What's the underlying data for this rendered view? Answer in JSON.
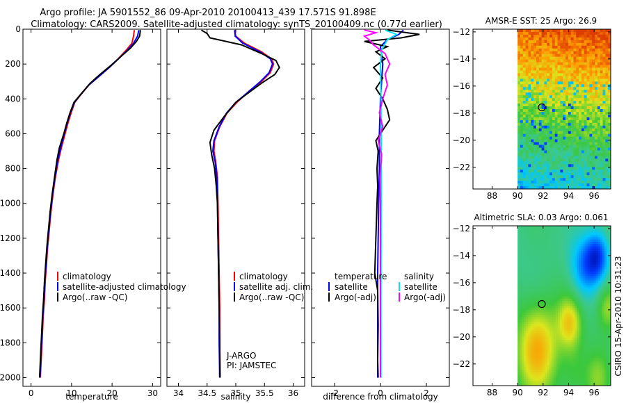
{
  "header": {
    "line1": "Argo profile: JA 5901552_86 09-Apr-2010 20100413_439 17.571S 91.898E",
    "line2": "Climatology: CARS2009. Satellite-adjusted climatology: synTS_20100409.nc (0.77d earlier)"
  },
  "side_stamp": "CSIRO 15-Apr-2010 10:31:23",
  "chart_data": [
    {
      "id": "temperature",
      "type": "line",
      "xlabel": "temperature",
      "xlim": [
        -2,
        32
      ],
      "xticks": [
        0,
        10,
        20,
        30
      ],
      "ylim": [
        2050,
        0
      ],
      "yticks": [
        0,
        200,
        400,
        600,
        800,
        1000,
        1200,
        1400,
        1600,
        1800,
        2000
      ],
      "legend": [
        "climatology",
        "satellite-adjusted climatology",
        "Argo(..raw -QC)"
      ],
      "annotations": [],
      "series": [
        {
          "name": "climatology",
          "color": "#ff0000",
          "points": [
            [
              25.5,
              5
            ],
            [
              25.3,
              40
            ],
            [
              24.9,
              80
            ],
            [
              23.5,
              120
            ],
            [
              21.5,
              170
            ],
            [
              19.3,
              220
            ],
            [
              16.8,
              270
            ],
            [
              14.3,
              320
            ],
            [
              12.5,
              370
            ],
            [
              10.8,
              420
            ],
            [
              9.9,
              480
            ],
            [
              9.1,
              540
            ],
            [
              8.4,
              600
            ],
            [
              7.5,
              680
            ],
            [
              6.8,
              750
            ],
            [
              6.0,
              850
            ],
            [
              5.4,
              950
            ],
            [
              4.9,
              1050
            ],
            [
              4.5,
              1150
            ],
            [
              4.1,
              1250
            ],
            [
              3.8,
              1350
            ],
            [
              3.5,
              1450
            ],
            [
              3.3,
              1550
            ],
            [
              3.0,
              1650
            ],
            [
              2.8,
              1750
            ],
            [
              2.6,
              1850
            ],
            [
              2.4,
              1950
            ],
            [
              2.3,
              2000
            ]
          ]
        },
        {
          "name": "satellite-adjusted climatology",
          "color": "#0000ff",
          "points": [
            [
              26.6,
              5
            ],
            [
              26.3,
              40
            ],
            [
              25.3,
              80
            ],
            [
              23.8,
              120
            ],
            [
              21.6,
              170
            ],
            [
              19.3,
              220
            ],
            [
              16.8,
              270
            ],
            [
              14.3,
              320
            ],
            [
              12.4,
              370
            ],
            [
              10.7,
              420
            ],
            [
              9.7,
              480
            ],
            [
              8.9,
              540
            ],
            [
              8.2,
              600
            ],
            [
              7.3,
              680
            ],
            [
              6.6,
              750
            ],
            [
              5.9,
              850
            ],
            [
              5.3,
              950
            ],
            [
              4.8,
              1050
            ],
            [
              4.4,
              1150
            ],
            [
              4.0,
              1250
            ],
            [
              3.7,
              1350
            ],
            [
              3.4,
              1450
            ],
            [
              3.2,
              1550
            ],
            [
              2.9,
              1650
            ],
            [
              2.7,
              1750
            ],
            [
              2.5,
              1850
            ],
            [
              2.3,
              1950
            ],
            [
              2.2,
              2000
            ]
          ]
        },
        {
          "name": "Argo(..raw -QC)",
          "color": "#000000",
          "points": [
            [
              27.0,
              5
            ],
            [
              26.8,
              40
            ],
            [
              26.0,
              70
            ],
            [
              24.5,
              110
            ],
            [
              22.0,
              160
            ],
            [
              19.6,
              210
            ],
            [
              17.0,
              260
            ],
            [
              14.6,
              310
            ],
            [
              12.4,
              370
            ],
            [
              10.6,
              420
            ],
            [
              9.6,
              480
            ],
            [
              8.8,
              540
            ],
            [
              8.1,
              600
            ],
            [
              7.0,
              680
            ],
            [
              6.4,
              750
            ],
            [
              5.8,
              850
            ],
            [
              5.2,
              950
            ],
            [
              4.7,
              1050
            ],
            [
              4.3,
              1150
            ],
            [
              3.9,
              1250
            ],
            [
              3.6,
              1350
            ],
            [
              3.3,
              1450
            ],
            [
              3.1,
              1550
            ],
            [
              2.8,
              1650
            ],
            [
              2.6,
              1750
            ],
            [
              2.4,
              1850
            ],
            [
              2.2,
              1950
            ],
            [
              2.1,
              2000
            ]
          ]
        }
      ]
    },
    {
      "id": "salinity",
      "type": "line",
      "xlabel": "salinity",
      "xlim": [
        33.8,
        36.2
      ],
      "xticks": [
        34,
        34.5,
        35,
        35.5,
        36
      ],
      "ylim": [
        2050,
        0
      ],
      "yticks": [
        0,
        200,
        400,
        600,
        800,
        1000,
        1200,
        1400,
        1600,
        1800,
        2000
      ],
      "legend": [
        "climatology",
        "satellite adj. clim.",
        "Argo(..raw -QC)"
      ],
      "annotations": [
        "J-ARGO",
        "PI: JAMSTEC"
      ],
      "series": [
        {
          "name": "climatology",
          "color": "#ff0000",
          "points": [
            [
              34.98,
              5
            ],
            [
              35.0,
              40
            ],
            [
              35.15,
              80
            ],
            [
              35.45,
              130
            ],
            [
              35.62,
              170
            ],
            [
              35.66,
              200
            ],
            [
              35.6,
              250
            ],
            [
              35.45,
              300
            ],
            [
              35.25,
              350
            ],
            [
              35.02,
              420
            ],
            [
              34.85,
              480
            ],
            [
              34.72,
              560
            ],
            [
              34.63,
              640
            ],
            [
              34.62,
              700
            ],
            [
              34.65,
              760
            ],
            [
              34.68,
              850
            ],
            [
              34.69,
              1000
            ],
            [
              34.7,
              1200
            ],
            [
              34.71,
              1400
            ],
            [
              34.72,
              1600
            ],
            [
              34.72,
              1800
            ],
            [
              34.73,
              2000
            ]
          ]
        },
        {
          "name": "satellite adj. clim.",
          "color": "#0000ff",
          "points": [
            [
              34.98,
              5
            ],
            [
              34.99,
              40
            ],
            [
              35.12,
              80
            ],
            [
              35.42,
              130
            ],
            [
              35.6,
              170
            ],
            [
              35.64,
              200
            ],
            [
              35.58,
              250
            ],
            [
              35.43,
              300
            ],
            [
              35.22,
              360
            ],
            [
              35.0,
              420
            ],
            [
              34.84,
              480
            ],
            [
              34.71,
              560
            ],
            [
              34.62,
              640
            ],
            [
              34.6,
              700
            ],
            [
              34.64,
              760
            ],
            [
              34.67,
              850
            ],
            [
              34.68,
              1000
            ],
            [
              34.69,
              1200
            ],
            [
              34.7,
              1400
            ],
            [
              34.71,
              1600
            ],
            [
              34.71,
              1800
            ],
            [
              34.72,
              2000
            ]
          ]
        },
        {
          "name": "Argo(..raw -QC)",
          "color": "#000000",
          "points": [
            [
              34.4,
              5
            ],
            [
              34.5,
              25
            ],
            [
              34.55,
              50
            ],
            [
              35.1,
              90
            ],
            [
              35.45,
              140
            ],
            [
              35.7,
              180
            ],
            [
              35.76,
              220
            ],
            [
              35.68,
              260
            ],
            [
              35.45,
              310
            ],
            [
              35.2,
              370
            ],
            [
              35.0,
              420
            ],
            [
              34.8,
              500
            ],
            [
              34.62,
              580
            ],
            [
              34.55,
              650
            ],
            [
              34.58,
              720
            ],
            [
              34.63,
              800
            ],
            [
              34.66,
              900
            ],
            [
              34.68,
              1000
            ],
            [
              34.69,
              1200
            ],
            [
              34.7,
              1400
            ],
            [
              34.71,
              1600
            ],
            [
              34.72,
              1800
            ],
            [
              34.72,
              2000
            ]
          ]
        }
      ]
    },
    {
      "id": "difference",
      "type": "line",
      "xlabel": "difference from climatology",
      "xlim": [
        -3,
        3
      ],
      "xticks": [
        -2,
        0,
        2
      ],
      "ylim": [
        2050,
        0
      ],
      "yticks": [
        0,
        200,
        400,
        600,
        800,
        1000,
        1200,
        1400,
        1600,
        1800,
        2000
      ],
      "legend": [
        "temperature",
        "satellite",
        "Argo(-adj)",
        "salinity",
        "satellite",
        "Argo(-adj)"
      ],
      "annotations": [],
      "series": [
        {
          "name": "temperature satellite",
          "color": "#0000ff",
          "points": [
            [
              1.0,
              5
            ],
            [
              0.8,
              30
            ],
            [
              0.3,
              60
            ],
            [
              0.0,
              100
            ],
            [
              0.1,
              200
            ],
            [
              0.0,
              400
            ],
            [
              -0.05,
              600
            ],
            [
              -0.05,
              800
            ],
            [
              -0.08,
              1000
            ],
            [
              -0.1,
              1200
            ],
            [
              -0.12,
              1400
            ],
            [
              -0.12,
              1600
            ],
            [
              -0.12,
              1800
            ],
            [
              -0.12,
              2000
            ]
          ]
        },
        {
          "name": "temperature Argo(-adj)",
          "color": "#000000",
          "points": [
            [
              0.3,
              5
            ],
            [
              1.7,
              30
            ],
            [
              0.9,
              50
            ],
            [
              -0.7,
              70
            ],
            [
              0.3,
              100
            ],
            [
              -0.2,
              130
            ],
            [
              0.2,
              170
            ],
            [
              -0.3,
              220
            ],
            [
              0.1,
              280
            ],
            [
              -0.2,
              340
            ],
            [
              0.1,
              400
            ],
            [
              0.3,
              460
            ],
            [
              0.4,
              520
            ],
            [
              0.1,
              580
            ],
            [
              -0.2,
              640
            ],
            [
              -0.1,
              700
            ],
            [
              -0.15,
              800
            ],
            [
              -0.12,
              900
            ],
            [
              -0.15,
              1000
            ],
            [
              -0.2,
              1200
            ],
            [
              -0.25,
              1400
            ],
            [
              -0.12,
              1500
            ],
            [
              -0.1,
              1700
            ],
            [
              -0.12,
              1900
            ],
            [
              -0.1,
              2000
            ]
          ]
        },
        {
          "name": "salinity satellite",
          "color": "#00e5ee",
          "points": [
            [
              0.2,
              5
            ],
            [
              0.7,
              30
            ],
            [
              0.3,
              60
            ],
            [
              0.05,
              120
            ],
            [
              0.0,
              200
            ],
            [
              0.02,
              400
            ],
            [
              0.03,
              600
            ],
            [
              0.03,
              1000
            ],
            [
              0.02,
              1500
            ],
            [
              0.02,
              2000
            ]
          ]
        },
        {
          "name": "salinity Argo(-adj)",
          "color": "#ff00ff",
          "points": [
            [
              -0.7,
              5
            ],
            [
              -0.2,
              20
            ],
            [
              -0.7,
              40
            ],
            [
              -0.5,
              60
            ],
            [
              -0.3,
              90
            ],
            [
              0.2,
              140
            ],
            [
              0.4,
              200
            ],
            [
              0.2,
              260
            ],
            [
              0.3,
              320
            ],
            [
              0.1,
              400
            ],
            [
              -0.05,
              480
            ],
            [
              0.1,
              560
            ],
            [
              -0.1,
              640
            ],
            [
              0.05,
              720
            ],
            [
              -0.02,
              850
            ],
            [
              0.0,
              1000
            ],
            [
              0.0,
              1500
            ],
            [
              0.0,
              2000
            ]
          ]
        }
      ]
    },
    {
      "id": "sst_map",
      "type": "heatmap",
      "title": "AMSR-E SST: 25 Argo: 26.9",
      "xlim": [
        86.5,
        97.3
      ],
      "ylim": [
        -23.6,
        -11.8
      ],
      "xticks": [
        88,
        90,
        92,
        94,
        96
      ],
      "yticks": [
        -12,
        -14,
        -16,
        -18,
        -20,
        -22
      ],
      "data_lon_range": [
        90,
        97.3
      ],
      "marker": {
        "lon": 91.9,
        "lat": -17.57
      }
    },
    {
      "id": "sla_map",
      "type": "heatmap",
      "title": "Altimetric SLA: 0.03 Argo: 0.061",
      "xlim": [
        86.5,
        97.3
      ],
      "ylim": [
        -23.6,
        -11.8
      ],
      "xticks": [
        88,
        90,
        92,
        94,
        96
      ],
      "yticks": [
        -12,
        -14,
        -16,
        -18,
        -20,
        -22
      ],
      "data_lon_range": [
        90,
        97.3
      ],
      "marker": {
        "lon": 91.9,
        "lat": -17.57
      }
    }
  ]
}
